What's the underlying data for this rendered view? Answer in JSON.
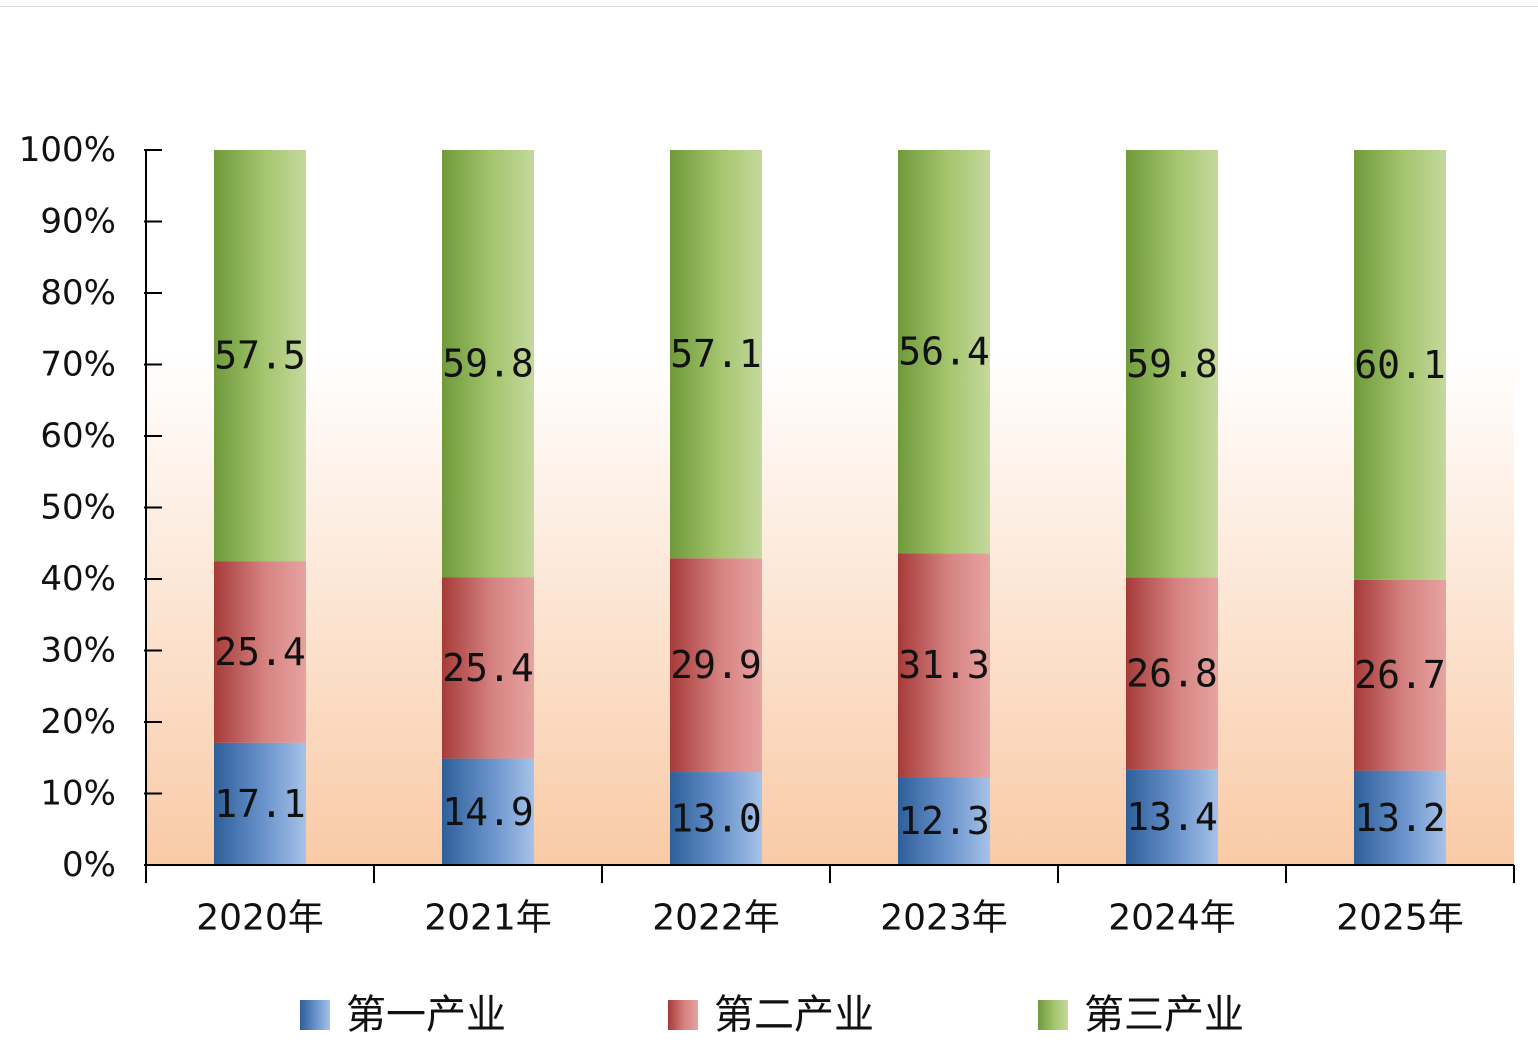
{
  "chart_data": {
    "type": "bar",
    "stacked": true,
    "percent_stacked": true,
    "categories": [
      "2020年",
      "2021年",
      "2022年",
      "2023年",
      "2024年",
      "2025年"
    ],
    "series": [
      {
        "name": "第一产业",
        "values": [
          17.1,
          14.9,
          13.0,
          12.3,
          13.4,
          13.2
        ],
        "labels": [
          "17.1",
          "14.9",
          "13.0",
          "12.3",
          "13.4",
          "13.2"
        ],
        "color": "#4f81bd"
      },
      {
        "name": "第二产业",
        "values": [
          25.4,
          25.4,
          29.9,
          31.3,
          26.8,
          26.7
        ],
        "labels": [
          "25.4",
          "25.4",
          "29.9",
          "31.3",
          "26.8",
          "26.7"
        ],
        "color": "#c0504d"
      },
      {
        "name": "第三产业",
        "values": [
          57.5,
          59.8,
          57.1,
          56.4,
          59.8,
          60.1
        ],
        "labels": [
          "57.5",
          "59.8",
          "57.1",
          "56.4",
          "59.8",
          "60.1"
        ],
        "color": "#9bbb59"
      }
    ],
    "y_ticks": [
      "0%",
      "10%",
      "20%",
      "30%",
      "40%",
      "50%",
      "60%",
      "70%",
      "80%",
      "90%",
      "100%"
    ],
    "ylim": [
      0,
      100
    ],
    "grid": false,
    "legend": "bottom",
    "title": "",
    "xlabel": "",
    "ylabel": ""
  }
}
